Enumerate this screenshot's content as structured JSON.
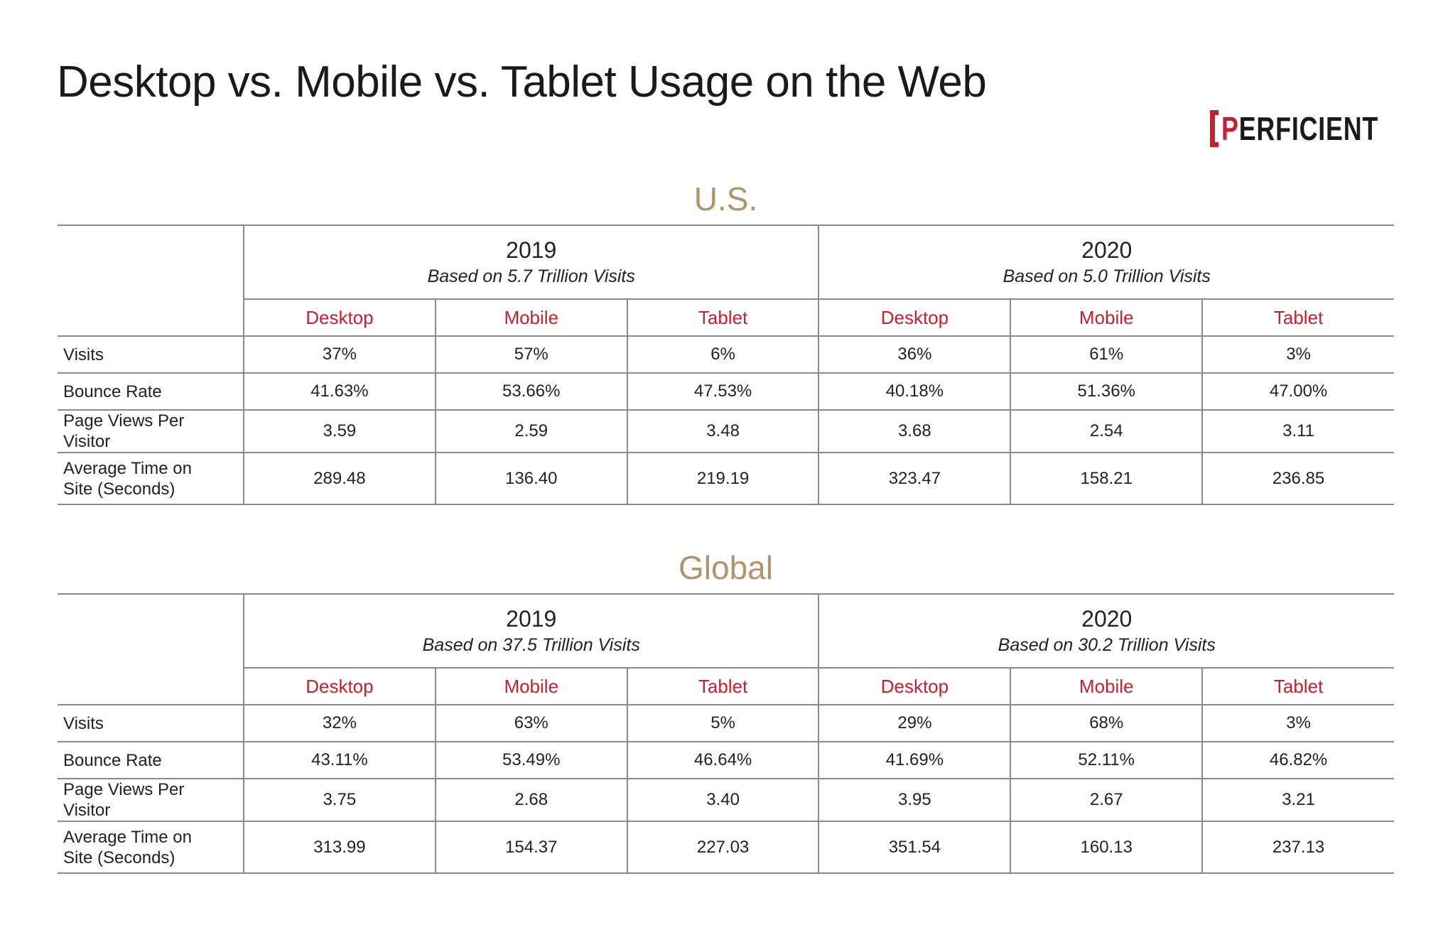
{
  "header": {
    "title": "Desktop vs. Mobile vs. Tablet Usage on the Web",
    "logo": "PERFICIENT"
  },
  "tables": [
    {
      "region": "U.S.",
      "periods": [
        {
          "year": "2019",
          "note": "Based on 5.7 Trillion Visits",
          "columns": [
            "Desktop",
            "Mobile",
            "Tablet"
          ]
        },
        {
          "year": "2020",
          "note": "Based on 5.0 Trillion Visits",
          "columns": [
            "Desktop",
            "Mobile",
            "Tablet"
          ]
        }
      ],
      "rows": [
        {
          "label": "Visits",
          "cells": [
            "37%",
            "57%",
            "6%",
            "36%",
            "61%",
            "3%"
          ]
        },
        {
          "label": "Bounce Rate",
          "cells": [
            "41.63%",
            "53.66%",
            "47.53%",
            "40.18%",
            "51.36%",
            "47.00%"
          ]
        },
        {
          "label": "Page Views Per Visitor",
          "cells": [
            "3.59",
            "2.59",
            "3.48",
            "3.68",
            "2.54",
            "3.11"
          ]
        },
        {
          "label": "Average Time on Site (Seconds)",
          "cells": [
            "289.48",
            "136.40",
            "219.19",
            "323.47",
            "158.21",
            "236.85"
          ]
        }
      ]
    },
    {
      "region": "Global",
      "periods": [
        {
          "year": "2019",
          "note": "Based on 37.5 Trillion Visits",
          "columns": [
            "Desktop",
            "Mobile",
            "Tablet"
          ]
        },
        {
          "year": "2020",
          "note": "Based on 30.2 Trillion Visits",
          "columns": [
            "Desktop",
            "Mobile",
            "Tablet"
          ]
        }
      ],
      "rows": [
        {
          "label": "Visits",
          "cells": [
            "32%",
            "63%",
            "5%",
            "29%",
            "68%",
            "3%"
          ]
        },
        {
          "label": "Bounce Rate",
          "cells": [
            "43.11%",
            "53.49%",
            "46.64%",
            "41.69%",
            "52.11%",
            "46.82%"
          ]
        },
        {
          "label": "Page Views Per Visitor",
          "cells": [
            "3.75",
            "2.68",
            "3.40",
            "3.95",
            "2.67",
            "3.21"
          ]
        },
        {
          "label": "Average Time on Site (Seconds)",
          "cells": [
            "313.99",
            "154.37",
            "227.03",
            "351.54",
            "160.13",
            "237.13"
          ]
        }
      ]
    }
  ]
}
